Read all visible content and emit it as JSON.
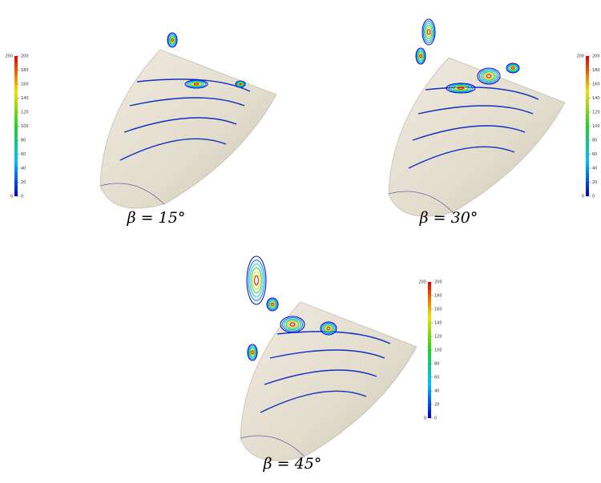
{
  "panels": [
    {
      "caption": "β = 15°",
      "colorbar": {
        "min": 0,
        "max": 200,
        "ticks": [
          0,
          20,
          40,
          60,
          80,
          100,
          120,
          140,
          160,
          180,
          200
        ]
      }
    },
    {
      "caption": "β = 30°",
      "colorbar": {
        "min": 0,
        "max": 200,
        "ticks": [
          0,
          20,
          40,
          60,
          80,
          100,
          120,
          140,
          160,
          180,
          200
        ]
      }
    },
    {
      "caption": "β = 45°",
      "colorbar": {
        "min": 0,
        "max": 200,
        "ticks": [
          0,
          20,
          40,
          60,
          80,
          100,
          120,
          140,
          160,
          180,
          200
        ]
      }
    }
  ]
}
